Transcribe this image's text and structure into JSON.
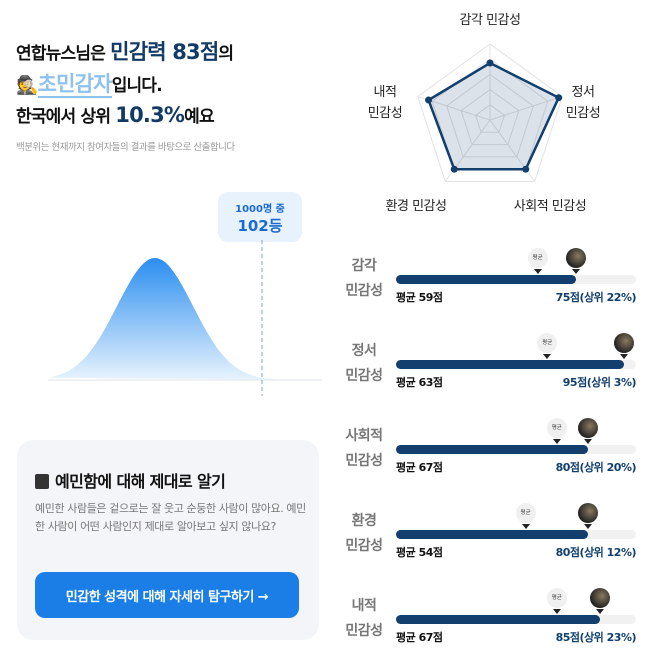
{
  "header": {
    "line1_pre": "연합뉴스님은 ",
    "score_text": "민감력 83점",
    "line1_post": "의",
    "type": "초민감자",
    "line2_post": "입니다.",
    "line3_pre": "한국에서 상위 ",
    "percent": "10.3%",
    "line3_post": "예요",
    "note": "백분위는 현재까지 참여자들의 결과를 바탕으로 산출합니다"
  },
  "distribution": {
    "bubble_top": "1000명 중",
    "bubble_rank": "102등",
    "user_percentile": 0.897
  },
  "card": {
    "title": "예민함에 대해 제대로 알기",
    "body": "예민한 사람들은 겉으로는 잘 웃고 순둥한 사람이 많아요. 예민한 사람이 어떤 사람인지 제대로 알아보고 싶지 않나요?",
    "button": "민감한 성격에 대해 자세히 탐구하기 →"
  },
  "radar": {
    "max": 100,
    "axes": [
      {
        "label1": "감각 민감성",
        "label2": "",
        "value": 75
      },
      {
        "label1": "정서",
        "label2": "민감성",
        "value": 95
      },
      {
        "label1": "사회적 민감성",
        "label2": "",
        "value": 80
      },
      {
        "label1": "환경 민감성",
        "label2": "",
        "value": 80
      },
      {
        "label1": "내적",
        "label2": "민감성",
        "value": 85
      }
    ]
  },
  "bars": {
    "avg_tag": "평균",
    "items": [
      {
        "line1": "감각",
        "line2": "민감성",
        "avg": 59,
        "score": 75,
        "avg_text": "평균 59점",
        "score_text": "75점(상위 22%)"
      },
      {
        "line1": "정서",
        "line2": "민감성",
        "avg": 63,
        "score": 95,
        "avg_text": "평균 63점",
        "score_text": "95점(상위 3%)"
      },
      {
        "line1": "사회적",
        "line2": "민감성",
        "avg": 67,
        "score": 80,
        "avg_text": "평균 67점",
        "score_text": "80점(상위 20%)"
      },
      {
        "line1": "환경",
        "line2": "민감성",
        "avg": 54,
        "score": 80,
        "avg_text": "평균 54점",
        "score_text": "80점(상위 12%)"
      },
      {
        "line1": "내적",
        "line2": "민감성",
        "avg": 67,
        "score": 85,
        "avg_text": "평균 67점",
        "score_text": "85점(상위 23%)"
      }
    ]
  },
  "colors": {
    "navy": "#123f6e",
    "blue": "#1a7ee6"
  }
}
